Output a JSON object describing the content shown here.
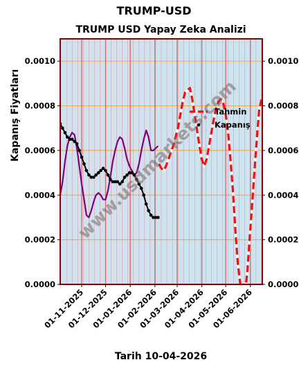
{
  "header": {
    "title": "TRUMP-USD",
    "subtitle": "TRUMP USD Yapay Zeka Analizi"
  },
  "chart_data": {
    "type": "line",
    "title": "TRUMP USD Yapay Zeka Analizi",
    "xlabel": "Tarih 10-04-2026",
    "ylabel": "Kapanış Fiyatları",
    "ylim": [
      0,
      0.0011
    ],
    "xlim": [
      "2025-10-05",
      "2026-06-16"
    ],
    "yticks": [
      "0.0000",
      "0.0002",
      "0.0004",
      "0.0006",
      "0.0008",
      "0.0010"
    ],
    "xticks": [
      "01-11-2025",
      "01-12-2025",
      "01-01-2026",
      "01-02-2026",
      "01-03-2026",
      "01-04-2026",
      "01-05-2026",
      "01-06-2026"
    ],
    "watermark": "www.usdmarkets.com",
    "grid": true,
    "legend_position": "upper-right",
    "legend": [
      "Tahmin",
      "Kapanış"
    ],
    "colors": {
      "background": "#cfe2ef",
      "frame": "#8b0000",
      "hgrid": "#f0b050",
      "vgrid": "#e06060",
      "tahmin": "#ee1111",
      "kapanis": "#000000",
      "purple": "#800080"
    },
    "series": [
      {
        "name": "Kapanış",
        "x": [
          "2025-10-05",
          "2025-10-08",
          "2025-10-11",
          "2025-10-14",
          "2025-10-17",
          "2025-10-20",
          "2025-10-23",
          "2025-10-26",
          "2025-10-29",
          "2025-11-01",
          "2025-11-04",
          "2025-11-07",
          "2025-11-10",
          "2025-11-13",
          "2025-11-16",
          "2025-11-19",
          "2025-11-22",
          "2025-11-25",
          "2025-11-28",
          "2025-12-01",
          "2025-12-04",
          "2025-12-07",
          "2025-12-10",
          "2025-12-13",
          "2025-12-16",
          "2025-12-19",
          "2025-12-22",
          "2025-12-25",
          "2025-12-28",
          "2025-12-31",
          "2026-01-03",
          "2026-01-06",
          "2026-01-09",
          "2026-01-12",
          "2026-01-15",
          "2026-01-18",
          "2026-01-21",
          "2026-01-24",
          "2026-01-27",
          "2026-01-30",
          "2026-02-02",
          "2026-02-05"
        ],
        "values": [
          0.00072,
          0.0007,
          0.00068,
          0.00066,
          0.00065,
          0.00065,
          0.00064,
          0.00063,
          0.0006,
          0.00057,
          0.00054,
          0.00051,
          0.00049,
          0.00048,
          0.00048,
          0.00049,
          0.0005,
          0.00051,
          0.00052,
          0.00051,
          0.00049,
          0.00047,
          0.00046,
          0.00046,
          0.00046,
          0.00045,
          0.00046,
          0.00048,
          0.00049,
          0.0005,
          0.0005,
          0.00049,
          0.00047,
          0.00045,
          0.00043,
          0.0004,
          0.00036,
          0.00033,
          0.00031,
          0.0003,
          0.0003,
          0.0003
        ]
      },
      {
        "name": "",
        "x": [
          "2025-10-05",
          "2025-10-08",
          "2025-10-11",
          "2025-10-14",
          "2025-10-17",
          "2025-10-20",
          "2025-10-23",
          "2025-10-26",
          "2025-10-29",
          "2025-11-01",
          "2025-11-04",
          "2025-11-07",
          "2025-11-10",
          "2025-11-13",
          "2025-11-16",
          "2025-11-19",
          "2025-11-22",
          "2025-11-25",
          "2025-11-28",
          "2025-12-01",
          "2025-12-04",
          "2025-12-07",
          "2025-12-10",
          "2025-12-13",
          "2025-12-16",
          "2025-12-19",
          "2025-12-22",
          "2025-12-25",
          "2025-12-28",
          "2025-12-31",
          "2026-01-03",
          "2026-01-06",
          "2026-01-09",
          "2026-01-12",
          "2026-01-15",
          "2026-01-18",
          "2026-01-21",
          "2026-01-24",
          "2026-01-27",
          "2026-01-30",
          "2026-02-02",
          "2026-02-05"
        ],
        "values": [
          0.0004,
          0.00046,
          0.00055,
          0.00062,
          0.00066,
          0.00068,
          0.00067,
          0.00061,
          0.00053,
          0.00045,
          0.00038,
          0.00031,
          0.0003,
          0.00033,
          0.00037,
          0.0004,
          0.00041,
          0.0004,
          0.00038,
          0.00038,
          0.00042,
          0.00048,
          0.00055,
          0.0006,
          0.00064,
          0.00066,
          0.00065,
          0.00061,
          0.00056,
          0.00053,
          0.00051,
          0.00049,
          0.0005,
          0.00054,
          0.0006,
          0.00065,
          0.00069,
          0.00066,
          0.0006,
          0.0006,
          0.00061,
          0.00062
        ]
      },
      {
        "name": "Tahmin",
        "x": [
          "2026-02-06",
          "2026-02-09",
          "2026-02-12",
          "2026-02-15",
          "2026-02-18",
          "2026-02-21",
          "2026-02-24",
          "2026-02-27",
          "2026-03-02",
          "2026-03-05",
          "2026-03-08",
          "2026-03-11",
          "2026-03-14",
          "2026-03-17",
          "2026-03-20",
          "2026-03-23",
          "2026-03-26",
          "2026-03-29",
          "2026-04-01",
          "2026-04-04",
          "2026-04-07",
          "2026-04-10",
          "2026-04-13",
          "2026-04-16",
          "2026-04-19",
          "2026-04-22",
          "2026-04-25",
          "2026-04-28",
          "2026-05-01",
          "2026-05-04",
          "2026-05-07",
          "2026-05-10",
          "2026-05-13",
          "2026-05-16",
          "2026-05-19",
          "2026-05-22",
          "2026-05-25",
          "2026-05-28",
          "2026-05-31",
          "2026-06-03",
          "2026-06-06",
          "2026-06-09",
          "2026-06-12",
          "2026-06-15"
        ],
        "values": [
          0.00054,
          0.00052,
          0.00051,
          0.00053,
          0.00056,
          0.00059,
          0.00062,
          0.00066,
          0.0007,
          0.00076,
          0.00082,
          0.00086,
          0.00087,
          0.00088,
          0.00083,
          0.00076,
          0.00069,
          0.00062,
          0.00056,
          0.00053,
          0.00056,
          0.00062,
          0.00068,
          0.00074,
          0.00079,
          0.00082,
          0.00083,
          0.00081,
          0.00076,
          0.00068,
          0.00056,
          0.00042,
          0.00025,
          0.0001,
          1e-05,
          -5e-05,
          -4e-05,
          5e-05,
          0.0002,
          0.00035,
          0.0005,
          0.00065,
          0.00078,
          0.00083
        ]
      }
    ]
  }
}
